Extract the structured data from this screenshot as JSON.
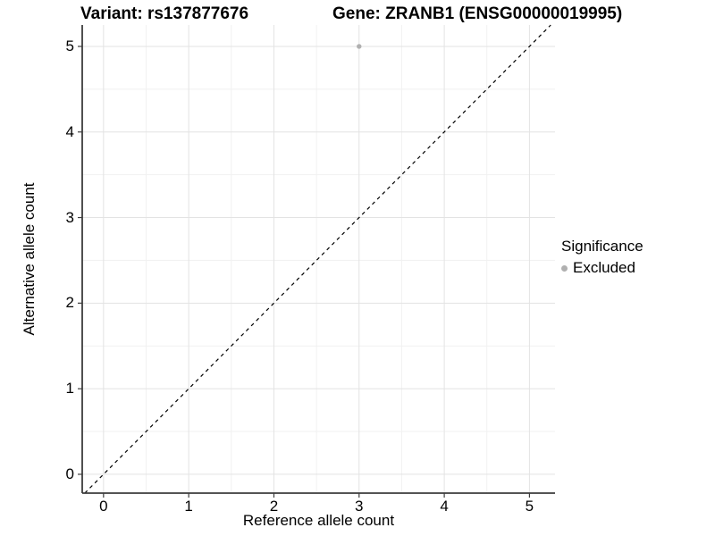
{
  "chart_data": {
    "type": "scatter",
    "title_left": "Variant: rs137877676",
    "title_right": "Gene: ZRANB1 (ENSG00000019995)",
    "xlabel": "Reference allele count",
    "ylabel": "Alternative allele count",
    "xticks": [
      0,
      1,
      2,
      3,
      4,
      5
    ],
    "yticks": [
      0,
      1,
      2,
      3,
      4,
      5
    ],
    "xlim": [
      -0.25,
      5.3
    ],
    "ylim": [
      -0.22,
      5.25
    ],
    "grid": {
      "major": true,
      "minor": true
    },
    "points": [
      {
        "x": 3,
        "y": 5,
        "significance": "Excluded"
      }
    ],
    "reference_line": {
      "intercept": 0,
      "slope": 1,
      "style": "dashed"
    },
    "legend": {
      "title": "Significance",
      "position": "right",
      "items": [
        {
          "label": "Excluded",
          "color": "#b0b0b0",
          "marker": "circle"
        }
      ]
    }
  },
  "colors": {
    "background": "#ffffff",
    "grid_major": "#e3e3e3",
    "grid_minor": "#f1f1f1",
    "axis_line": "#3c3c3c",
    "reference_line": "#000000",
    "point": "#b0b0b0",
    "text": "#000000"
  }
}
